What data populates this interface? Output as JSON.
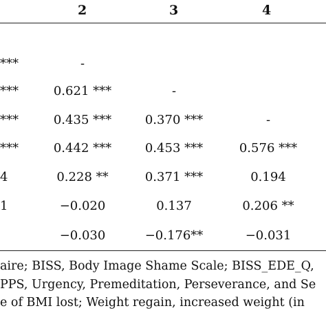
{
  "table": {
    "headers": [
      "2",
      "3",
      "4"
    ],
    "rows": [
      [
        "***",
        "-",
        "",
        ""
      ],
      [
        "***",
        "0.621 ***",
        "-",
        ""
      ],
      [
        "***",
        "0.435 ***",
        "0.370 ***",
        "-"
      ],
      [
        "***",
        "0.442 ***",
        "0.453 ***",
        "0.576 ***"
      ],
      [
        "4",
        "0.228 **",
        "0.371 ***",
        "0.194"
      ],
      [
        "1",
        "−0.020",
        "0.137",
        "0.206 **"
      ],
      [
        "",
        "−0.030",
        "−0.176**",
        "−0.031"
      ]
    ]
  },
  "notes": [
    "aire; BISS, Body Image Shame Scale; BISS_EDE_Q,",
    "PPS, Urgency, Premeditation, Perseverance, and Se",
    "e of BMI lost; Weight regain, increased weight (in"
  ]
}
